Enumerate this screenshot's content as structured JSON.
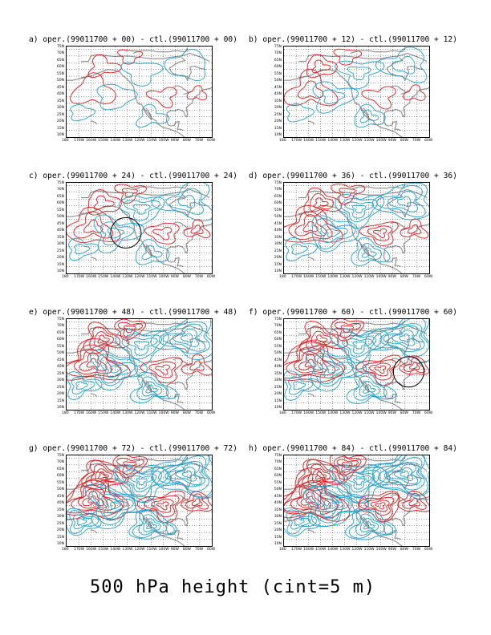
{
  "axes": {
    "lat_labels": [
      "75N",
      "70N",
      "65N",
      "60N",
      "55N",
      "50N",
      "45N",
      "40N",
      "35N",
      "30N",
      "25N",
      "20N",
      "15N",
      "10N"
    ],
    "lon_labels": [
      "180",
      "170W",
      "160W",
      "150W",
      "140W",
      "130W",
      "120W",
      "110W",
      "100W",
      "90W",
      "80W",
      "70W",
      "60W"
    ]
  },
  "colors": {
    "positive": "#e31a1c",
    "negative": "#1fa0d0",
    "coast": "#8c8c8c",
    "grid": "#000000"
  },
  "panels": [
    {
      "id": "a",
      "title": "a) oper.(99011700 + 00) - ctl.(99011700 + 00)",
      "intensity": 0.15,
      "circle": false
    },
    {
      "id": "b",
      "title": "b) oper.(99011700 + 12) - ctl.(99011700 + 12)",
      "intensity": 0.3,
      "circle": false
    },
    {
      "id": "c",
      "title": "c) oper.(99011700 + 24) - ctl.(99011700 + 24)",
      "intensity": 0.45,
      "circle": true
    },
    {
      "id": "d",
      "title": "d) oper.(99011700 + 36) - ctl.(99011700 + 36)",
      "intensity": 0.55,
      "circle": false
    },
    {
      "id": "e",
      "title": "e) oper.(99011700 + 48) - ctl.(99011700 + 48)",
      "intensity": 0.7,
      "circle": false
    },
    {
      "id": "f",
      "title": "f) oper.(99011700 + 60) - ctl.(99011700 + 60)",
      "intensity": 0.8,
      "circle": true
    },
    {
      "id": "g",
      "title": "g) oper.(99011700 + 72) - ctl.(99011700 + 72)",
      "intensity": 0.9,
      "circle": false
    },
    {
      "id": "h",
      "title": "h) oper.(99011700 + 84) - ctl.(99011700 + 84)",
      "intensity": 1.0,
      "circle": false
    }
  ],
  "footer": "500 hPa height (cint=5 m)"
}
